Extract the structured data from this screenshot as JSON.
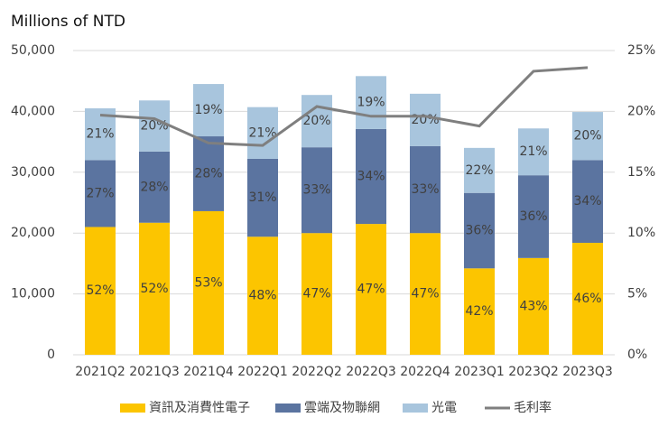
{
  "chart_data": {
    "type": "bar-line",
    "y_axis_title": "Millions of NTD",
    "categories": [
      "2021Q2",
      "2021Q3",
      "2021Q4",
      "2022Q1",
      "2022Q2",
      "2022Q3",
      "2022Q4",
      "2023Q1",
      "2023Q2",
      "2023Q3"
    ],
    "series": [
      {
        "name": "資訊及消費性電子",
        "color": "#fcc500",
        "values": [
          21000,
          21700,
          23600,
          19400,
          20000,
          21500,
          20000,
          14200,
          15900,
          18400
        ],
        "segment_labels": [
          "52%",
          "52%",
          "53%",
          "48%",
          "47%",
          "47%",
          "47%",
          "42%",
          "43%",
          "46%"
        ]
      },
      {
        "name": "雲端及物聯網",
        "color": "#5b74a0",
        "values": [
          11000,
          11700,
          12300,
          12800,
          14100,
          15600,
          14300,
          12400,
          13600,
          13600
        ],
        "segment_labels": [
          "27%",
          "28%",
          "28%",
          "31%",
          "33%",
          "34%",
          "33%",
          "36%",
          "36%",
          "34%"
        ]
      },
      {
        "name": "光電",
        "color": "#a8c5dd",
        "values": [
          8500,
          8400,
          8600,
          8500,
          8600,
          8700,
          8600,
          7400,
          7700,
          7900
        ],
        "segment_labels": [
          "21%",
          "20%",
          "19%",
          "21%",
          "20%",
          "19%",
          "20%",
          "22%",
          "21%",
          "20%"
        ]
      },
      {
        "name": "毛利率",
        "color": "#7f7f7f",
        "axis": "y2",
        "type": "line",
        "values": [
          19.7,
          19.4,
          17.4,
          17.2,
          20.4,
          19.6,
          19.6,
          18.8,
          23.3,
          23.6
        ]
      }
    ],
    "ylim": [
      0,
      50000
    ],
    "yticks": [
      0,
      {
        "value": 10000,
        "label": "10,000"
      },
      {
        "value": 20000,
        "label": "20,000"
      },
      {
        "value": 30000,
        "label": "30,000"
      },
      {
        "value": 40000,
        "label": "40,000"
      },
      {
        "value": 50000,
        "label": "50,000"
      }
    ],
    "y2lim": [
      0,
      25
    ],
    "y2ticks": [
      {
        "value": 0,
        "label": "0%"
      },
      {
        "value": 5,
        "label": "5%"
      },
      {
        "value": 10,
        "label": "10%"
      },
      {
        "value": 15,
        "label": "15%"
      },
      {
        "value": 20,
        "label": "20%"
      },
      {
        "value": 25,
        "label": "25%"
      }
    ],
    "grid": true,
    "legend": "bottom"
  }
}
